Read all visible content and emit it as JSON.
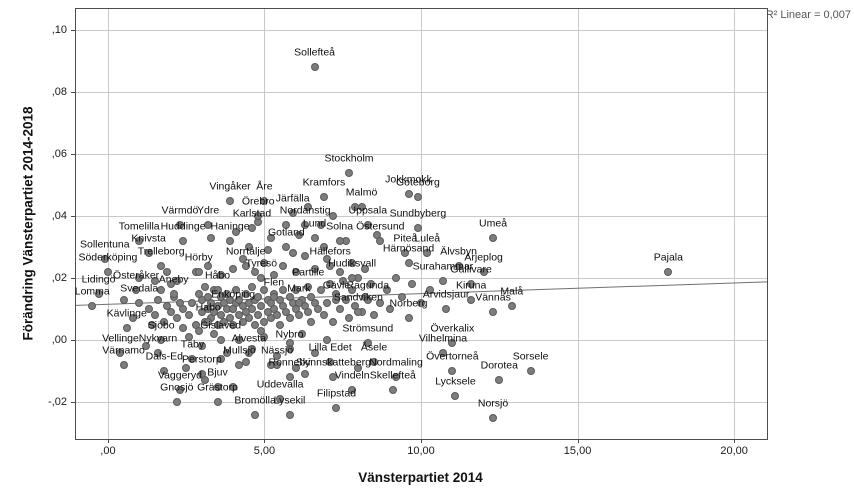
{
  "figure": {
    "r2_annotation": "R² Linear = 0,007"
  },
  "chart_data": {
    "type": "scatter",
    "title": "",
    "xlabel": "Vänsterpartiet 2014",
    "ylabel": "Förändring Vänsterpartiet 2014-2018",
    "xlim": [
      -1.02,
      21.05
    ],
    "ylim": [
      -0.0319,
      0.1068
    ],
    "grid": true,
    "legend_position": "none",
    "marker_color": "#7d7d7d",
    "marker_edge_color": "#5a5a5a",
    "gridline_color": "#c9c9c9",
    "x_ticks": [
      {
        "v": 0,
        "label": ",00"
      },
      {
        "v": 5,
        "label": "5,00"
      },
      {
        "v": 10,
        "label": "10,00"
      },
      {
        "v": 15,
        "label": "15,00"
      },
      {
        "v": 20,
        "label": "20,00"
      }
    ],
    "y_ticks": [
      {
        "v": 0.1,
        "label": ",10"
      },
      {
        "v": 0.08,
        "label": ",08"
      },
      {
        "v": 0.06,
        "label": ",06"
      },
      {
        "v": 0.04,
        "label": ",04"
      },
      {
        "v": 0.02,
        "label": ",02"
      },
      {
        "v": 0.0,
        "label": ",00"
      },
      {
        "v": -0.02,
        "label": "-,02"
      }
    ],
    "trendline": {
      "x1": -1.02,
      "y1": 0.0112,
      "x2": 21.05,
      "y2": 0.0188,
      "r2": "0,007",
      "color": "#707070"
    },
    "labeled_points": [
      {
        "name": "Sollefteå",
        "x": 6.6,
        "y": 0.088
      },
      {
        "name": "Stockholm",
        "x": 7.7,
        "y": 0.054
      },
      {
        "name": "Kramfors",
        "x": 6.9,
        "y": 0.046
      },
      {
        "name": "Jokkmokk",
        "x": 9.6,
        "y": 0.047
      },
      {
        "name": "Göteborg",
        "x": 9.9,
        "y": 0.046
      },
      {
        "name": "Malmö",
        "x": 8.1,
        "y": 0.043
      },
      {
        "name": "Vingåker",
        "x": 3.9,
        "y": 0.045
      },
      {
        "name": "Åre",
        "x": 5.0,
        "y": 0.045
      },
      {
        "name": "Örebro",
        "x": 4.8,
        "y": 0.04
      },
      {
        "name": "Järfälla",
        "x": 5.9,
        "y": 0.041
      },
      {
        "name": "Värmdö",
        "x": 2.3,
        "y": 0.037
      },
      {
        "name": "Ydre",
        "x": 3.2,
        "y": 0.037
      },
      {
        "name": "Karlstad",
        "x": 4.6,
        "y": 0.036
      },
      {
        "name": "Nordanstig",
        "x": 6.3,
        "y": 0.037
      },
      {
        "name": "Uppsala",
        "x": 8.3,
        "y": 0.037
      },
      {
        "name": "Sundbyberg",
        "x": 9.9,
        "y": 0.036
      },
      {
        "name": "Tomelilla",
        "x": 1.0,
        "y": 0.032
      },
      {
        "name": "Huddinge",
        "x": 2.4,
        "y": 0.032
      },
      {
        "name": "Lund",
        "x": 6.6,
        "y": 0.033
      },
      {
        "name": "Solna",
        "x": 7.4,
        "y": 0.032
      },
      {
        "name": "Östersund",
        "x": 8.7,
        "y": 0.032
      },
      {
        "name": "Knivsta",
        "x": 1.3,
        "y": 0.028
      },
      {
        "name": "Haninge",
        "x": 3.9,
        "y": 0.032
      },
      {
        "name": "Gotland",
        "x": 5.7,
        "y": 0.03
      },
      {
        "name": "Piteå",
        "x": 9.5,
        "y": 0.028
      },
      {
        "name": "Luleå",
        "x": 10.2,
        "y": 0.028
      },
      {
        "name": "Sollentuna",
        "x": -0.1,
        "y": 0.026
      },
      {
        "name": "Trelleborg",
        "x": 1.7,
        "y": 0.024
      },
      {
        "name": "Hörby",
        "x": 2.9,
        "y": 0.022
      },
      {
        "name": "Norrtälje",
        "x": 4.4,
        "y": 0.024
      },
      {
        "name": "Härnösand",
        "x": 9.6,
        "y": 0.025
      },
      {
        "name": "Älvsbyn",
        "x": 11.2,
        "y": 0.024
      },
      {
        "name": "Söderköping",
        "x": 0.0,
        "y": 0.022
      },
      {
        "name": "Tyresö",
        "x": 4.9,
        "y": 0.02
      },
      {
        "name": "Hällefors",
        "x": 7.1,
        "y": 0.024
      },
      {
        "name": "Hudiksvall",
        "x": 7.8,
        "y": 0.02
      },
      {
        "name": "Arjeplog",
        "x": 12.0,
        "y": 0.022
      },
      {
        "name": "Surahammar",
        "x": 10.7,
        "y": 0.019
      },
      {
        "name": "Umeå",
        "x": 12.3,
        "y": 0.033
      },
      {
        "name": "Österåker",
        "x": 0.9,
        "y": 0.016
      },
      {
        "name": "Aneby",
        "x": 2.1,
        "y": 0.015
      },
      {
        "name": "Håbo",
        "x": 3.5,
        "y": 0.016
      },
      {
        "name": "Flen",
        "x": 5.3,
        "y": 0.014
      },
      {
        "name": "Partille",
        "x": 6.4,
        "y": 0.017
      },
      {
        "name": "Mark",
        "x": 6.1,
        "y": 0.012
      },
      {
        "name": "Lidingö",
        "x": -0.3,
        "y": 0.015
      },
      {
        "name": "Lomma",
        "x": -0.5,
        "y": 0.011
      },
      {
        "name": "Svedala",
        "x": 1.0,
        "y": 0.012
      },
      {
        "name": "Enköping",
        "x": 4.0,
        "y": 0.01
      },
      {
        "name": "Gävle",
        "x": 7.3,
        "y": 0.013
      },
      {
        "name": "Ragunda",
        "x": 8.3,
        "y": 0.013
      },
      {
        "name": "Sandviken",
        "x": 8.0,
        "y": 0.009
      },
      {
        "name": "Gällivare",
        "x": 11.6,
        "y": 0.018
      },
      {
        "name": "Kiruna",
        "x": 11.6,
        "y": 0.013
      },
      {
        "name": "Malå",
        "x": 12.9,
        "y": 0.011
      },
      {
        "name": "Pajala",
        "x": 17.9,
        "y": 0.022
      },
      {
        "name": "Kävlinge",
        "x": 0.6,
        "y": 0.004
      },
      {
        "name": "Habo",
        "x": 3.2,
        "y": 0.006
      },
      {
        "name": "Norberg",
        "x": 9.6,
        "y": 0.007
      },
      {
        "name": "Vännäs",
        "x": 12.3,
        "y": 0.009
      },
      {
        "name": "Arvidsjaur",
        "x": 10.8,
        "y": 0.01
      },
      {
        "name": "Sjöbo",
        "x": 1.7,
        "y": 0.0
      },
      {
        "name": "Gislaved",
        "x": 3.6,
        "y": 0.0
      },
      {
        "name": "Strömsund",
        "x": 8.3,
        "y": -0.001
      },
      {
        "name": "Överkalix",
        "x": 11.0,
        "y": -0.001
      },
      {
        "name": "Vellinge",
        "x": 0.4,
        "y": -0.004
      },
      {
        "name": "Nykvarn",
        "x": 1.6,
        "y": -0.004
      },
      {
        "name": "Täby",
        "x": 2.7,
        "y": -0.006
      },
      {
        "name": "Alvesta",
        "x": 4.5,
        "y": -0.004
      },
      {
        "name": "Nybro",
        "x": 5.8,
        "y": -0.003
      },
      {
        "name": "Lilla Edet",
        "x": 7.1,
        "y": -0.007
      },
      {
        "name": "Åsele",
        "x": 8.5,
        "y": -0.007
      },
      {
        "name": "Vilhelmina",
        "x": 10.7,
        "y": -0.004
      },
      {
        "name": "Värnamo",
        "x": 0.5,
        "y": -0.008
      },
      {
        "name": "Dals-Ed",
        "x": 1.8,
        "y": -0.01
      },
      {
        "name": "Perstorp",
        "x": 3.0,
        "y": -0.011
      },
      {
        "name": "Mullsjö",
        "x": 4.2,
        "y": -0.008
      },
      {
        "name": "Nässjö",
        "x": 5.4,
        "y": -0.008
      },
      {
        "name": "Ronneby",
        "x": 5.8,
        "y": -0.012
      },
      {
        "name": "Skinnskatteberg",
        "x": 7.2,
        "y": -0.012
      },
      {
        "name": "Nordmaling",
        "x": 9.2,
        "y": -0.012
      },
      {
        "name": "Övertorneå",
        "x": 11.0,
        "y": -0.01
      },
      {
        "name": "Dorotea",
        "x": 12.5,
        "y": -0.013
      },
      {
        "name": "Sorsele",
        "x": 13.5,
        "y": -0.01
      },
      {
        "name": "Vaggeryd",
        "x": 2.3,
        "y": -0.016
      },
      {
        "name": "Bjuv",
        "x": 3.5,
        "y": -0.015
      },
      {
        "name": "Gnosjö",
        "x": 2.2,
        "y": -0.02
      },
      {
        "name": "Grästorp",
        "x": 3.5,
        "y": -0.02
      },
      {
        "name": "Uddevalla",
        "x": 5.5,
        "y": -0.019
      },
      {
        "name": "Vindeln",
        "x": 7.8,
        "y": -0.016
      },
      {
        "name": "Skellefteå",
        "x": 9.1,
        "y": -0.016
      },
      {
        "name": "Lycksele",
        "x": 11.1,
        "y": -0.018
      },
      {
        "name": "Filipstad",
        "x": 7.3,
        "y": -0.022
      },
      {
        "name": "Bromölla",
        "x": 4.7,
        "y": -0.024
      },
      {
        "name": "Lysekil",
        "x": 5.8,
        "y": -0.024
      },
      {
        "name": "Norsjö",
        "x": 12.3,
        "y": -0.025
      }
    ],
    "background_points": [
      [
        2.6,
        0.008
      ],
      [
        2.7,
        0.012
      ],
      [
        2.8,
        0.005
      ],
      [
        2.9,
        0.015
      ],
      [
        3.0,
        0.009
      ],
      [
        3.0,
        0.013
      ],
      [
        3.1,
        0.006
      ],
      [
        3.1,
        0.017
      ],
      [
        3.2,
        0.01
      ],
      [
        3.2,
        0.014
      ],
      [
        3.3,
        0.007
      ],
      [
        3.3,
        0.012
      ],
      [
        3.4,
        0.009
      ],
      [
        3.4,
        0.016
      ],
      [
        3.5,
        0.005
      ],
      [
        3.5,
        0.011
      ],
      [
        3.6,
        0.008
      ],
      [
        3.6,
        0.014
      ],
      [
        3.7,
        0.006
      ],
      [
        3.7,
        0.012
      ],
      [
        3.8,
        0.01
      ],
      [
        3.8,
        0.015
      ],
      [
        3.9,
        0.007
      ],
      [
        3.9,
        0.013
      ],
      [
        4.0,
        0.005
      ],
      [
        4.0,
        0.01
      ],
      [
        4.1,
        0.012
      ],
      [
        4.1,
        0.016
      ],
      [
        4.2,
        0.008
      ],
      [
        4.2,
        0.013
      ],
      [
        4.3,
        0.006
      ],
      [
        4.3,
        0.011
      ],
      [
        4.4,
        0.009
      ],
      [
        4.4,
        0.015
      ],
      [
        4.5,
        0.007
      ],
      [
        4.5,
        0.012
      ],
      [
        4.6,
        0.01
      ],
      [
        4.6,
        0.017
      ],
      [
        4.7,
        0.005
      ],
      [
        4.7,
        0.013
      ],
      [
        4.8,
        0.008
      ],
      [
        4.8,
        0.014
      ],
      [
        4.9,
        0.011
      ],
      [
        5.0,
        0.006
      ],
      [
        5.0,
        0.016
      ],
      [
        5.1,
        0.009
      ],
      [
        5.1,
        0.013
      ],
      [
        5.2,
        0.007
      ],
      [
        5.2,
        0.012
      ],
      [
        5.3,
        0.01
      ],
      [
        5.3,
        0.015
      ],
      [
        5.4,
        0.008
      ],
      [
        5.5,
        0.013
      ],
      [
        5.5,
        0.005
      ],
      [
        5.6,
        0.011
      ],
      [
        5.6,
        0.016
      ],
      [
        5.7,
        0.009
      ],
      [
        5.8,
        0.014
      ],
      [
        5.8,
        0.007
      ],
      [
        5.9,
        0.012
      ],
      [
        6.0,
        0.01
      ],
      [
        6.0,
        0.016
      ],
      [
        6.1,
        0.008
      ],
      [
        6.2,
        0.013
      ],
      [
        6.3,
        0.011
      ],
      [
        6.4,
        0.009
      ],
      [
        6.5,
        0.014
      ],
      [
        6.5,
        0.006
      ],
      [
        6.6,
        0.012
      ],
      [
        6.7,
        0.01
      ],
      [
        1.3,
        0.01
      ],
      [
        1.5,
        0.008
      ],
      [
        1.6,
        0.013
      ],
      [
        1.8,
        0.006
      ],
      [
        1.9,
        0.011
      ],
      [
        2.0,
        0.009
      ],
      [
        2.1,
        0.014
      ],
      [
        2.2,
        0.007
      ],
      [
        2.3,
        0.012
      ],
      [
        2.4,
        0.01
      ],
      [
        2.4,
        0.004
      ],
      [
        1.7,
        0.016
      ],
      [
        2.0,
        0.018
      ],
      [
        2.2,
        0.019
      ],
      [
        1.4,
        0.005
      ],
      [
        6.8,
        0.016
      ],
      [
        6.9,
        0.008
      ],
      [
        7.0,
        0.012
      ],
      [
        7.1,
        0.018
      ],
      [
        7.2,
        0.006
      ],
      [
        7.3,
        0.015
      ],
      [
        7.4,
        0.01
      ],
      [
        7.5,
        0.019
      ],
      [
        7.6,
        0.013
      ],
      [
        7.7,
        0.007
      ],
      [
        7.8,
        0.016
      ],
      [
        7.9,
        0.011
      ],
      [
        8.0,
        0.02
      ],
      [
        8.1,
        0.009
      ],
      [
        8.2,
        0.014
      ],
      [
        8.4,
        0.018
      ],
      [
        8.5,
        0.008
      ],
      [
        8.7,
        0.012
      ],
      [
        8.9,
        0.016
      ],
      [
        9.0,
        0.01
      ],
      [
        9.2,
        0.02
      ],
      [
        9.4,
        0.014
      ],
      [
        9.7,
        0.018
      ],
      [
        10.0,
        0.012
      ],
      [
        10.3,
        0.016
      ],
      [
        2.8,
        0.022
      ],
      [
        3.2,
        0.024
      ],
      [
        3.6,
        0.021
      ],
      [
        4.0,
        0.023
      ],
      [
        4.3,
        0.026
      ],
      [
        4.7,
        0.022
      ],
      [
        5.0,
        0.025
      ],
      [
        5.3,
        0.021
      ],
      [
        5.6,
        0.024
      ],
      [
        6.0,
        0.022
      ],
      [
        6.3,
        0.027
      ],
      [
        6.6,
        0.023
      ],
      [
        7.0,
        0.026
      ],
      [
        7.4,
        0.022
      ],
      [
        7.8,
        0.025
      ],
      [
        8.2,
        0.023
      ],
      [
        5.9,
        0.028
      ],
      [
        5.1,
        0.029
      ],
      [
        4.5,
        0.03
      ],
      [
        6.9,
        0.03
      ],
      [
        2.6,
        0.001
      ],
      [
        3.0,
        -0.002
      ],
      [
        3.4,
        0.002
      ],
      [
        3.8,
        -0.004
      ],
      [
        4.2,
        0.0
      ],
      [
        4.6,
        -0.003
      ],
      [
        5.0,
        0.001
      ],
      [
        5.4,
        -0.005
      ],
      [
        5.8,
        -0.001
      ],
      [
        6.2,
        0.002
      ],
      [
        6.6,
        -0.004
      ],
      [
        7.0,
        0.0
      ],
      [
        4.4,
        -0.007
      ],
      [
        3.6,
        -0.006
      ],
      [
        5.2,
        -0.008
      ],
      [
        6.0,
        -0.009
      ],
      [
        4.9,
        0.003
      ],
      [
        2.9,
        0.003
      ],
      [
        3.3,
        0.033
      ],
      [
        4.1,
        0.035
      ],
      [
        5.2,
        0.033
      ],
      [
        6.1,
        0.034
      ],
      [
        6.8,
        0.037
      ],
      [
        7.6,
        0.032
      ],
      [
        8.6,
        0.034
      ],
      [
        5.7,
        0.037
      ],
      [
        4.8,
        0.038
      ],
      [
        7.2,
        0.04
      ],
      [
        6.4,
        0.043
      ],
      [
        7.9,
        0.043
      ],
      [
        3.1,
        -0.013
      ],
      [
        4.0,
        -0.015
      ],
      [
        6.3,
        -0.011
      ],
      [
        8.0,
        -0.009
      ],
      [
        2.5,
        -0.009
      ],
      [
        1.2,
        -0.002
      ],
      [
        0.8,
        0.007
      ],
      [
        0.5,
        0.013
      ],
      [
        1.0,
        0.02
      ],
      [
        1.5,
        0.019
      ],
      [
        1.9,
        0.022
      ]
    ]
  }
}
